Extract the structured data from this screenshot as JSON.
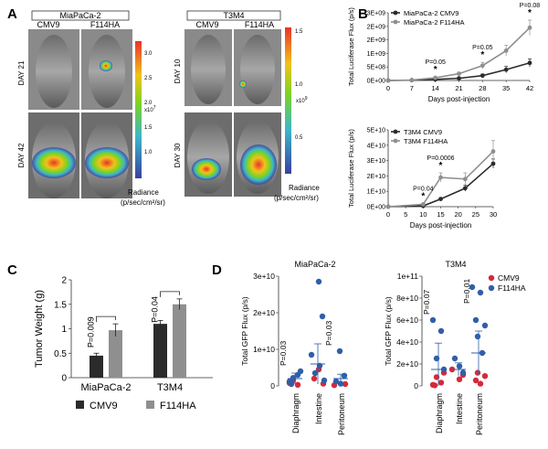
{
  "panels": {
    "A": "A",
    "B": "B",
    "C": "C",
    "D": "D"
  },
  "panel_a": {
    "left": {
      "title": "MiaPaCa-2",
      "col1": "CMV9",
      "col2": "F114HA",
      "row1": "DAY 21",
      "row2": "DAY 42",
      "scale_ticks": [
        "3.0",
        "2.5",
        "2.0",
        "1.5",
        "1.0"
      ],
      "scale_exp": "x10",
      "scale_pow": "7"
    },
    "right": {
      "title": "T3M4",
      "col1": "CMV9",
      "col2": "F114HA",
      "row1": "DAY 10",
      "row2": "DAY 30",
      "scale_ticks": [
        "1.5",
        "1.0",
        "0.5"
      ],
      "scale_exp": "x10",
      "scale_pow": "9"
    },
    "radiance_label_1": "Radiance",
    "radiance_label_2": "(p/sec/cm²/sr)"
  },
  "colors": {
    "cmv9": "#2b2b2b",
    "f114ha": "#8f8f8f",
    "red_dot": "#d42a3a",
    "blue_dot": "#2f5fa8",
    "scale_top": "#e8332a",
    "scale_bottom": "#3a3fa0"
  },
  "chart_data": [
    {
      "id": "B_top",
      "type": "line",
      "title": "",
      "xlabel": "Days post-injection",
      "ylabel": "Total Luciferase Flux (p/s)",
      "x": [
        0,
        7,
        14,
        21,
        28,
        35,
        42
      ],
      "xticks": [
        "0",
        "7",
        "14",
        "21",
        "28",
        "35",
        "42"
      ],
      "ylim": [
        0,
        2500000000
      ],
      "yticks_values": [
        0,
        500000000,
        1000000000,
        1500000000,
        2000000000,
        2500000000
      ],
      "yticks": [
        "0E+00",
        "5E+08",
        "1E+09",
        "2E+09",
        "2E+09",
        "3E+09"
      ],
      "series": [
        {
          "name": "MiaPaCa-2 CMV9",
          "values": [
            0,
            10000000,
            40000000,
            80000000,
            180000000,
            400000000,
            650000000
          ],
          "err": [
            0,
            5000000,
            15000000,
            30000000,
            60000000,
            120000000,
            150000000
          ]
        },
        {
          "name": "MiaPaCa-2 F114HA",
          "values": [
            0,
            15000000,
            100000000,
            250000000,
            550000000,
            1100000000,
            1950000000
          ],
          "err": [
            0,
            5000000,
            30000000,
            60000000,
            120000000,
            200000000,
            280000000
          ]
        }
      ],
      "annotations": [
        {
          "x": 14,
          "text": "P=0.05"
        },
        {
          "x": 28,
          "text": "P=0.05"
        },
        {
          "x": 42,
          "text": "P=0.08"
        }
      ]
    },
    {
      "id": "B_bottom",
      "type": "line",
      "xlabel": "Days post-injection",
      "ylabel": "Total Luciferase Flux (p/s)",
      "x": [
        0,
        10,
        15,
        22,
        30
      ],
      "xticks": [
        "0",
        "5",
        "10",
        "15",
        "20",
        "25",
        "30"
      ],
      "xticks_values": [
        0,
        5,
        10,
        15,
        20,
        25,
        30
      ],
      "ylim": [
        0,
        50000000000
      ],
      "yticks_values": [
        0,
        10000000000,
        20000000000,
        30000000000,
        40000000000,
        50000000000
      ],
      "yticks": [
        "0E+00",
        "1E+10",
        "2E+10",
        "3E+10",
        "4E+10",
        "5E+10"
      ],
      "series": [
        {
          "name": "T3M4 CMV9",
          "values": [
            0,
            500000000,
            5000000000,
            12000000000,
            28000000000
          ],
          "err": [
            0,
            200000000,
            800000000,
            2000000000,
            3000000000
          ]
        },
        {
          "name": "T3M4 F114HA",
          "values": [
            0,
            1500000000,
            19000000000,
            18000000000,
            36000000000
          ],
          "err": [
            0,
            500000000,
            3000000000,
            4000000000,
            7000000000
          ]
        }
      ],
      "annotations": [
        {
          "x": 10,
          "text": "P=0.04"
        },
        {
          "x": 15,
          "text": "P=0.0006"
        }
      ]
    },
    {
      "id": "C",
      "type": "bar",
      "ylabel": "Tumor Weight (g)",
      "ylim": [
        0,
        2
      ],
      "yticks": [
        "0",
        "0.5",
        "1",
        "1.5",
        "2"
      ],
      "categories": [
        "MiaPaCa-2",
        "T3M4"
      ],
      "series": [
        {
          "name": "CMV9",
          "values": [
            0.45,
            1.1
          ],
          "err": [
            0.05,
            0.07
          ]
        },
        {
          "name": "F114HA",
          "values": [
            0.97,
            1.5
          ],
          "err": [
            0.13,
            0.11
          ]
        }
      ],
      "annotations": [
        "P=0.009",
        "P=0.04"
      ]
    },
    {
      "id": "D_left",
      "type": "scatter",
      "title": "MiaPaCa-2",
      "ylabel": "Total GFP Flux (p/s)",
      "ylim": [
        0,
        30000000000
      ],
      "yticks": [
        "0",
        "1e+10",
        "2e+10",
        "3e+10"
      ],
      "categories": [
        "Diaphragm",
        "Intestine",
        "Peritoneum"
      ],
      "series": [
        {
          "name": "CMV9",
          "points": [
            [
              0,
              800000000
            ],
            [
              0,
              300000000
            ],
            [
              0,
              1500000000
            ],
            [
              1,
              600000000
            ],
            [
              1,
              2000000000
            ],
            [
              1,
              4500000000
            ],
            [
              2,
              500000000
            ],
            [
              2,
              200000000
            ]
          ]
        },
        {
          "name": "F114HA",
          "points": [
            [
              0,
              1200000000
            ],
            [
              0,
              3000000000
            ],
            [
              0,
              2200000000
            ],
            [
              0,
              4000000000
            ],
            [
              0,
              500000000
            ],
            [
              1,
              28500000000
            ],
            [
              1,
              19000000000
            ],
            [
              1,
              8500000000
            ],
            [
              1,
              5500000000
            ],
            [
              1,
              3500000000
            ],
            [
              1,
              1500000000
            ],
            [
              2,
              9500000000
            ],
            [
              2,
              2800000000
            ],
            [
              2,
              1200000000
            ],
            [
              2,
              600000000
            ]
          ]
        }
      ],
      "means": [
        {
          "cat": 0,
          "mean": 2000000000,
          "sd": 1500000000
        },
        {
          "cat": 1,
          "mean": 6000000000,
          "sd": 5500000000
        },
        {
          "cat": 2,
          "mean": 2000000000,
          "sd": 1200000000
        }
      ],
      "annotations": [
        {
          "cat": 0,
          "text": "P=0.03"
        },
        {
          "cat": 2,
          "text": "P=0.03"
        }
      ]
    },
    {
      "id": "D_right",
      "type": "scatter",
      "title": "T3M4",
      "ylabel": "Total GFP Flux (p/s)",
      "ylim": [
        0,
        100000000000
      ],
      "yticks": [
        "0",
        "2e+10",
        "4e+10",
        "6e+10",
        "8e+10",
        "1e+11"
      ],
      "categories": [
        "Diaphragm",
        "Intestine",
        "Peritoneum"
      ],
      "series": [
        {
          "name": "CMV9",
          "points": [
            [
              0,
              1000000000
            ],
            [
              0,
              3000000000
            ],
            [
              0,
              8000000000
            ],
            [
              0,
              12000000000
            ],
            [
              0,
              500000000
            ],
            [
              1,
              6000000000
            ],
            [
              1,
              10000000000
            ],
            [
              1,
              15000000000
            ],
            [
              2,
              2000000000
            ],
            [
              2,
              5000000000
            ],
            [
              2,
              9000000000
            ],
            [
              2,
              12000000000
            ]
          ]
        },
        {
          "name": "F114HA",
          "points": [
            [
              0,
              60000000000
            ],
            [
              0,
              50000000000
            ],
            [
              0,
              25000000000
            ],
            [
              0,
              15000000000
            ],
            [
              1,
              25000000000
            ],
            [
              1,
              18000000000
            ],
            [
              1,
              12000000000
            ],
            [
              2,
              90000000000
            ],
            [
              2,
              85000000000
            ],
            [
              2,
              60000000000
            ],
            [
              2,
              55000000000
            ],
            [
              2,
              45000000000
            ],
            [
              2,
              30000000000
            ]
          ]
        }
      ],
      "means": [
        {
          "cat": 0,
          "mean": 15000000000,
          "sd": 24000000000
        },
        {
          "cat": 1,
          "mean": 15000000000,
          "sd": 6000000000
        },
        {
          "cat": 2,
          "mean": 30000000000,
          "sd": 20000000000
        }
      ],
      "annotations": [
        {
          "cat": 0,
          "text": "P=0.07"
        },
        {
          "cat": 2,
          "text": "P=0.01"
        }
      ]
    }
  ]
}
